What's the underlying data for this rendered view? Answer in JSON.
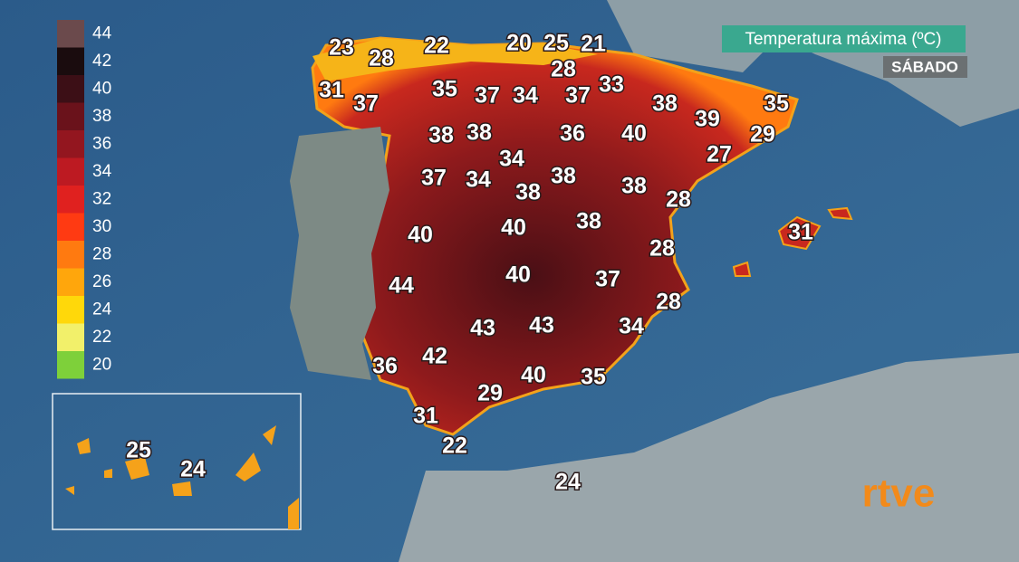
{
  "header": {
    "title": "Temperatura máxima (ºC)",
    "day": "SÁBADO"
  },
  "legend": [
    {
      "value": 44,
      "color": "#6b4a4c"
    },
    {
      "value": 42,
      "color": "#1a0c0e"
    },
    {
      "value": 40,
      "color": "#3c0f16"
    },
    {
      "value": 38,
      "color": "#6a121b"
    },
    {
      "value": 36,
      "color": "#93161f"
    },
    {
      "value": 34,
      "color": "#bd1a22"
    },
    {
      "value": 32,
      "color": "#e0211f"
    },
    {
      "value": 30,
      "color": "#ff3a12"
    },
    {
      "value": 28,
      "color": "#ff7a10"
    },
    {
      "value": 26,
      "color": "#ffa60c"
    },
    {
      "value": 24,
      "color": "#ffd80a"
    },
    {
      "value": 22,
      "color": "#f2f06a"
    },
    {
      "value": 20,
      "color": "#7ed03a"
    }
  ],
  "temperatures": [
    23,
    28,
    22,
    20,
    25,
    21,
    28,
    31,
    37,
    35,
    37,
    34,
    37,
    33,
    38,
    35,
    39,
    29,
    38,
    38,
    36,
    40,
    27,
    34,
    37,
    34,
    38,
    38,
    38,
    28,
    31,
    40,
    40,
    38,
    28,
    44,
    40,
    37,
    28,
    43,
    43,
    34,
    36,
    42,
    40,
    35,
    29,
    31,
    22,
    24,
    25,
    24
  ],
  "logo": "rtve"
}
